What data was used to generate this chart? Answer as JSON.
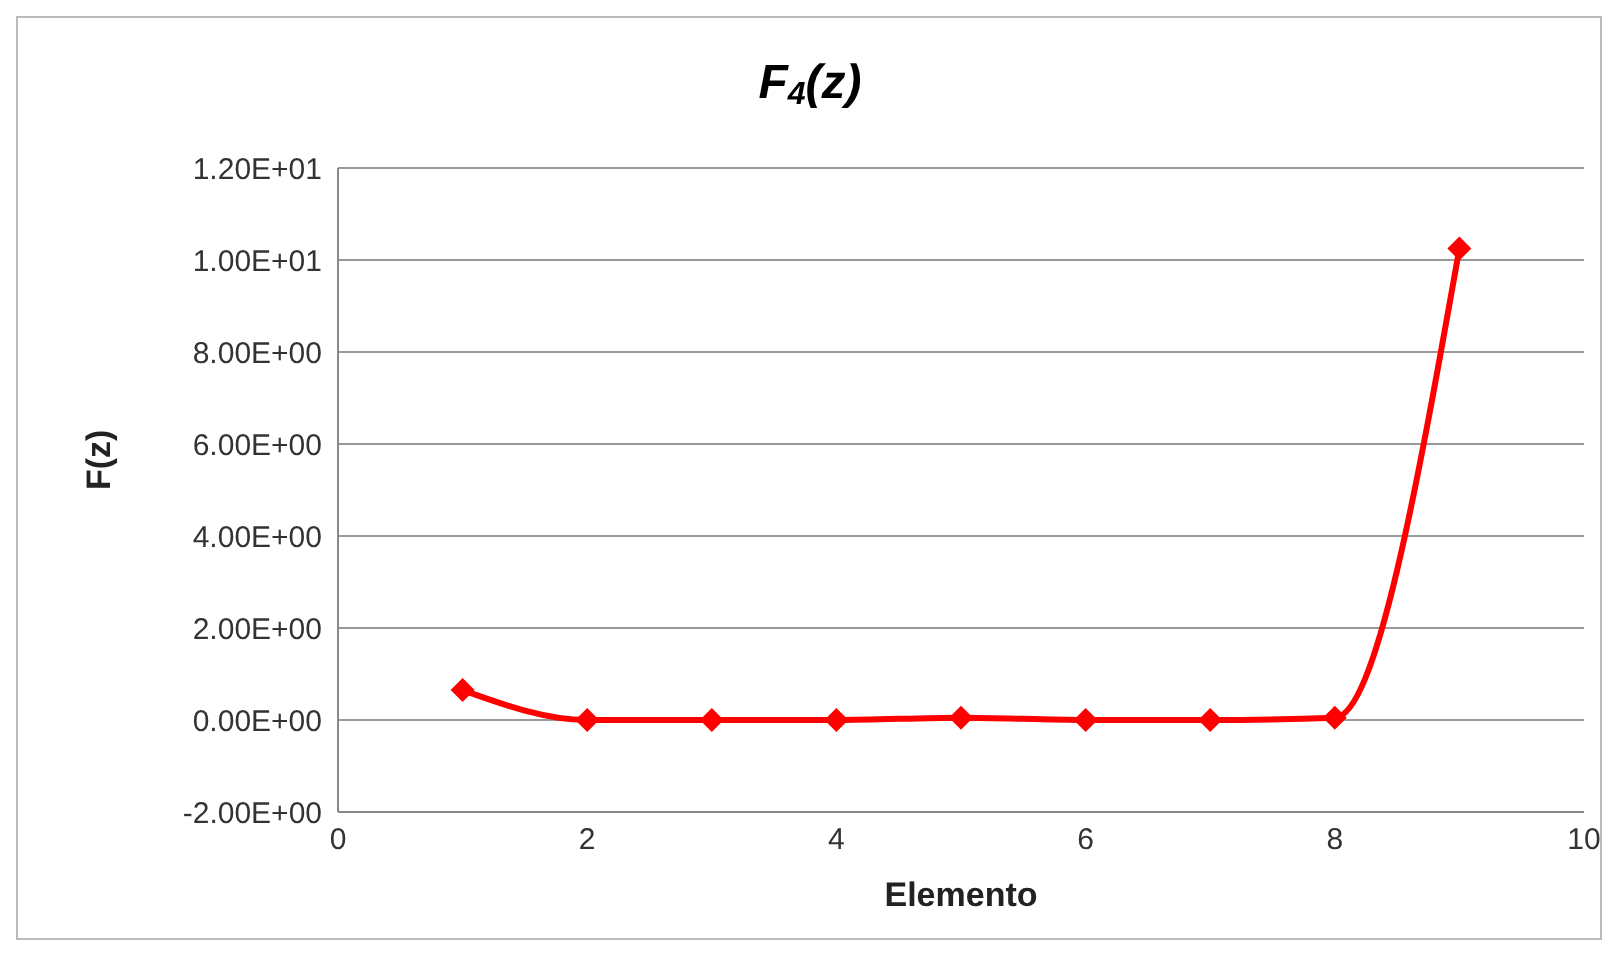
{
  "chart_data": {
    "type": "line",
    "title": "F$_{4}$(z)",
    "xlabel": "Elemento",
    "ylabel": "F(z)",
    "x": [
      1,
      2,
      3,
      4,
      5,
      6,
      7,
      8,
      9
    ],
    "series": [
      {
        "color": "#ff0000",
        "values": [
          0.65,
          0.0,
          0.0,
          0.0,
          0.05,
          0.0,
          0.0,
          0.05,
          10.25
        ]
      }
    ],
    "xlim": [
      0,
      10
    ],
    "xticks": [
      0,
      2,
      4,
      6,
      8,
      10
    ],
    "ylim": [
      -2,
      12
    ],
    "yticks": [
      {
        "value": -2,
        "label": "-2.00E+00"
      },
      {
        "value": 0,
        "label": "0.00E+00"
      },
      {
        "value": 2,
        "label": "2.00E+00"
      },
      {
        "value": 4,
        "label": "4.00E+00"
      },
      {
        "value": 6,
        "label": "6.00E+00"
      },
      {
        "value": 8,
        "label": "8.00E+00"
      },
      {
        "value": 10,
        "label": "1.00E+01"
      },
      {
        "value": 12,
        "label": "1.20E+01"
      }
    ],
    "grid": "y",
    "marker": "diamond",
    "line_style": "solid",
    "legend": false
  }
}
